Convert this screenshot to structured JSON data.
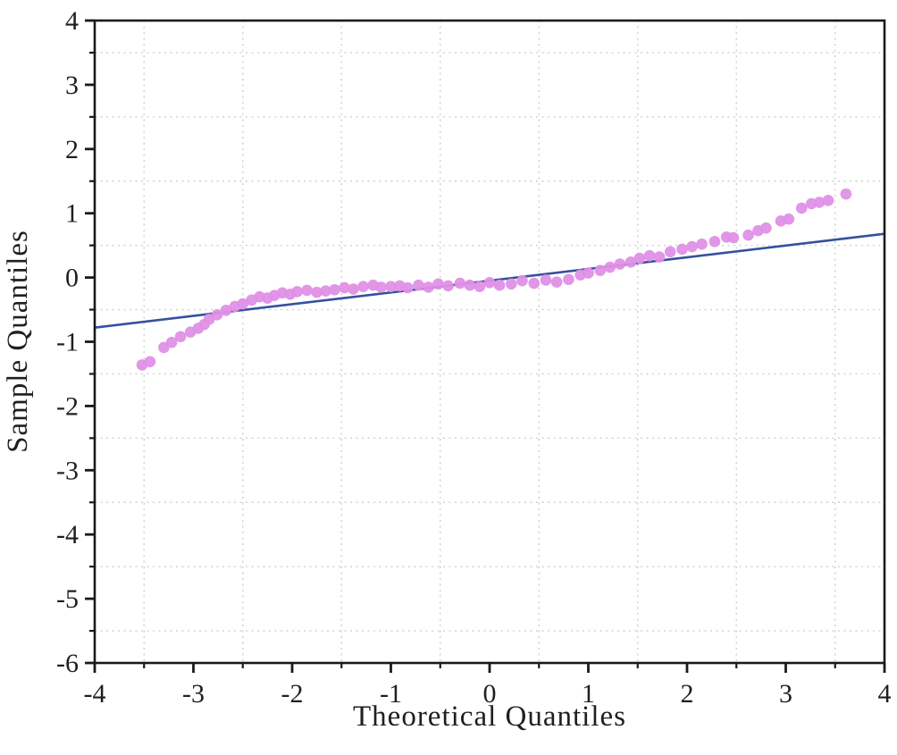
{
  "figure": {
    "background_color": "#ffffff",
    "frame_color": "#1a1a1a",
    "grid_color": "#d0d0d0",
    "tick_label_color": "#1f1f1f"
  },
  "chart_data": {
    "type": "scatter",
    "title": "",
    "xlabel": "Theoretical Quantiles",
    "ylabel": "Sample Quantiles",
    "xlim": [
      -4,
      4
    ],
    "ylim": [
      -6,
      4
    ],
    "x_major_ticks": [
      -4,
      -3,
      -2,
      -1,
      0,
      1,
      2,
      3,
      4
    ],
    "y_major_ticks": [
      -6,
      -5,
      -4,
      -3,
      -2,
      -1,
      0,
      1,
      2,
      3,
      4
    ],
    "x_minor_ticks": [
      -3.5,
      -2.5,
      -1.5,
      -0.5,
      0.5,
      1.5,
      2.5,
      3.5
    ],
    "y_minor_ticks": [
      -5.5,
      -4.5,
      -3.5,
      -2.5,
      -1.5,
      -0.5,
      0.5,
      1.5,
      2.5,
      3.5
    ],
    "grid": "dotted minor gridlines at half-unit positions, both axes",
    "legend": "none",
    "series": [
      {
        "name": "sample-quantile-points",
        "type": "scatter",
        "marker": "circle",
        "color": "#df90e6",
        "points": [
          [
            -3.52,
            -1.36
          ],
          [
            -3.44,
            -1.31
          ],
          [
            -3.3,
            -1.09
          ],
          [
            -3.22,
            -1.01
          ],
          [
            -3.13,
            -0.92
          ],
          [
            -3.03,
            -0.85
          ],
          [
            -2.95,
            -0.79
          ],
          [
            -2.89,
            -0.73
          ],
          [
            -2.84,
            -0.65
          ],
          [
            -2.76,
            -0.58
          ],
          [
            -2.67,
            -0.51
          ],
          [
            -2.58,
            -0.45
          ],
          [
            -2.5,
            -0.41
          ],
          [
            -2.41,
            -0.35
          ],
          [
            -2.33,
            -0.3
          ],
          [
            -2.25,
            -0.32
          ],
          [
            -2.18,
            -0.28
          ],
          [
            -2.1,
            -0.24
          ],
          [
            -2.02,
            -0.26
          ],
          [
            -1.95,
            -0.22
          ],
          [
            -1.85,
            -0.2
          ],
          [
            -1.75,
            -0.23
          ],
          [
            -1.66,
            -0.21
          ],
          [
            -1.57,
            -0.19
          ],
          [
            -1.47,
            -0.16
          ],
          [
            -1.38,
            -0.18
          ],
          [
            -1.28,
            -0.14
          ],
          [
            -1.18,
            -0.12
          ],
          [
            -1.1,
            -0.15
          ],
          [
            -1.0,
            -0.14
          ],
          [
            -0.91,
            -0.13
          ],
          [
            -0.83,
            -0.16
          ],
          [
            -0.72,
            -0.12
          ],
          [
            -0.62,
            -0.15
          ],
          [
            -0.52,
            -0.1
          ],
          [
            -0.42,
            -0.13
          ],
          [
            -0.3,
            -0.09
          ],
          [
            -0.2,
            -0.12
          ],
          [
            -0.1,
            -0.14
          ],
          [
            0.0,
            -0.08
          ],
          [
            0.1,
            -0.12
          ],
          [
            0.22,
            -0.1
          ],
          [
            0.33,
            -0.05
          ],
          [
            0.45,
            -0.09
          ],
          [
            0.57,
            -0.04
          ],
          [
            0.68,
            -0.07
          ],
          [
            0.8,
            -0.03
          ],
          [
            0.92,
            0.04
          ],
          [
            1.0,
            0.07
          ],
          [
            1.12,
            0.11
          ],
          [
            1.22,
            0.16
          ],
          [
            1.32,
            0.21
          ],
          [
            1.43,
            0.24
          ],
          [
            1.52,
            0.3
          ],
          [
            1.62,
            0.34
          ],
          [
            1.72,
            0.32
          ],
          [
            1.83,
            0.4
          ],
          [
            1.95,
            0.44
          ],
          [
            2.05,
            0.48
          ],
          [
            2.15,
            0.52
          ],
          [
            2.28,
            0.56
          ],
          [
            2.4,
            0.63
          ],
          [
            2.47,
            0.62
          ],
          [
            2.62,
            0.66
          ],
          [
            2.72,
            0.73
          ],
          [
            2.8,
            0.77
          ],
          [
            2.95,
            0.88
          ],
          [
            3.03,
            0.91
          ],
          [
            3.16,
            1.08
          ],
          [
            3.26,
            1.15
          ],
          [
            3.34,
            1.17
          ],
          [
            3.43,
            1.2
          ],
          [
            3.61,
            1.3
          ]
        ]
      },
      {
        "name": "normal-reference-line",
        "type": "line",
        "color": "#35519e",
        "points": [
          [
            -4,
            -0.78
          ],
          [
            4,
            0.68
          ]
        ]
      }
    ]
  }
}
